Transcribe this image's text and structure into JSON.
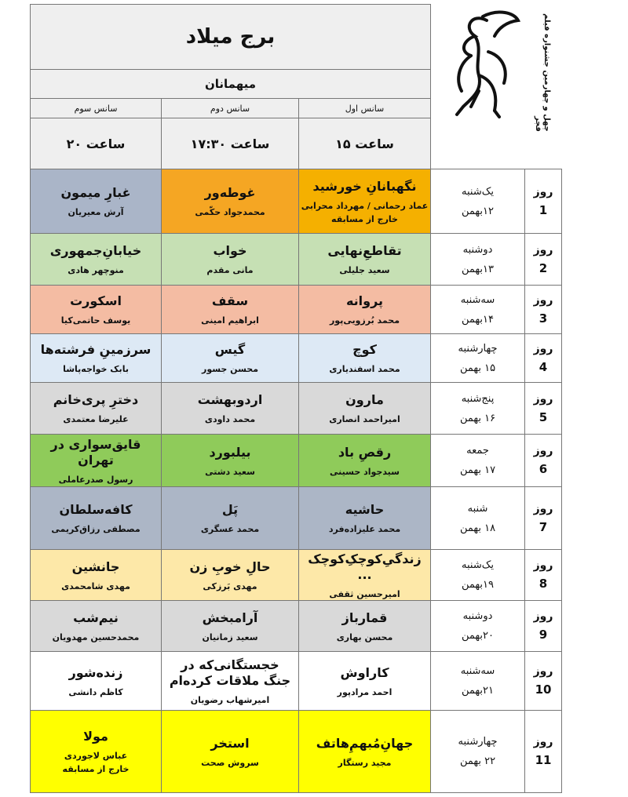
{
  "header": {
    "title": "برج میلاد",
    "guests": "میهمانان",
    "festival": "چهل و چهارمین جشنواره فیلم فجر",
    "sessions": [
      {
        "label": "سانس اول",
        "time": "ساعت ۱۵"
      },
      {
        "label": "سانس دوم",
        "time": "ساعت ۱۷:۳۰"
      },
      {
        "label": "سانس سوم",
        "time": "ساعت ۲۰"
      }
    ]
  },
  "schedule": {
    "day_label": "روز",
    "rows": [
      {
        "day": 1,
        "weekday": "یک‌شنبه",
        "date": "۱۲بهمن",
        "films": [
          {
            "title": "نگهبانانِ خورشید",
            "director": "عماد رحمانی / مهرداد محرابی",
            "note": "خارج از مسابقه",
            "color": "#f5b000"
          },
          {
            "title": "غوطه‌ور",
            "director": "محمدجواد حکّمی",
            "color": "#f5a623"
          },
          {
            "title": "غبارِ میمون",
            "director": "آرش معیریان",
            "color": "#aab5c8"
          }
        ]
      },
      {
        "day": 2,
        "weekday": "دوشنبه",
        "date": "۱۳بهمن",
        "films": [
          {
            "title": "تقاطعِ‌نهایی",
            "director": "سعید جلیلی",
            "color": "#c6e0b4"
          },
          {
            "title": "خواب",
            "director": "مانی مقدم",
            "color": "#c6e0b4"
          },
          {
            "title": "خیابانِ‌جمهوری",
            "director": "منوچهر هادی",
            "color": "#c6e0b4"
          }
        ]
      },
      {
        "day": 3,
        "weekday": "سه‌شنبه",
        "date": "۱۴بهمن",
        "films": [
          {
            "title": "پروانه",
            "director": "محمد بُرزویی‌پور",
            "color": "#f4bca3"
          },
          {
            "title": "سقف",
            "director": "ابراهیم امینی",
            "color": "#f4bca3"
          },
          {
            "title": "اسکورت",
            "director": "یوسف حاتمی‌کیا",
            "color": "#f4bca3"
          }
        ]
      },
      {
        "day": 4,
        "weekday": "چهارشنبه",
        "date": "۱۵ بهمن",
        "films": [
          {
            "title": "کوچ",
            "director": "محمد اسفندیاری",
            "color": "#dde9f5"
          },
          {
            "title": "گیس",
            "director": "محسن جسور",
            "color": "#dde9f5"
          },
          {
            "title": "سرزمینِ فرشته‌ها",
            "director": "بابک خواجه‌پاشا",
            "color": "#dde9f5"
          }
        ]
      },
      {
        "day": 5,
        "weekday": "پنج‌شنبه",
        "date": "۱۶ بهمن",
        "films": [
          {
            "title": "مارون",
            "director": "امیراحمد انصاری",
            "color": "#d9d9d9"
          },
          {
            "title": "اردوبهشت",
            "director": "محمد داودی",
            "color": "#d9d9d9"
          },
          {
            "title": "دخترِ پری‌خانم",
            "director": "علیرضا معتمدی",
            "color": "#d9d9d9"
          }
        ]
      },
      {
        "day": 6,
        "weekday": "جمعه",
        "date": "۱۷ بهمن",
        "films": [
          {
            "title": "رقصِ باد",
            "director": "سیدجواد حسینی",
            "color": "#8fcb5a"
          },
          {
            "title": "بیلبورد",
            "director": "سعید دشتی",
            "color": "#8fcb5a"
          },
          {
            "title": "قایق‌سواری در تهران",
            "director": "رسول صدرعاملی",
            "color": "#8fcb5a"
          }
        ]
      },
      {
        "day": 7,
        "weekday": "شنبه",
        "date": "۱۸ بهمن",
        "films": [
          {
            "title": "حاشیه",
            "director": "محمد علیزاده‌فرد",
            "color": "#acb6c6"
          },
          {
            "title": "پَل",
            "director": "محمد عسگری",
            "color": "#acb6c6"
          },
          {
            "title": "کافه‌سلطان",
            "director": "مصطفی رزاق‌کریمی",
            "color": "#acb6c6"
          }
        ]
      },
      {
        "day": 8,
        "weekday": "یک‌شنبه",
        "date": "۱۹بهمن",
        "films": [
          {
            "title": "زندگیِ‌کوچکِ‌کوچک ...",
            "director": "امیرحسین ثقفی",
            "color": "#fde8a8"
          },
          {
            "title": "حالِ خوبِ زن",
            "director": "مهدی بَرزکی",
            "color": "#fde8a8"
          },
          {
            "title": "جانشین",
            "director": "مهدی شامحمدی",
            "color": "#fde8a8"
          }
        ]
      },
      {
        "day": 9,
        "weekday": "دوشنبه",
        "date": "۲۰بهمن",
        "films": [
          {
            "title": "قمارباز",
            "director": "محسن بهاری",
            "color": "#d9d9d9"
          },
          {
            "title": "آرامبخش",
            "director": "سعید زمانیان",
            "color": "#d9d9d9"
          },
          {
            "title": "نیم‌شب",
            "director": "محمدحسین مهدویان",
            "color": "#d9d9d9"
          }
        ]
      },
      {
        "day": 10,
        "weekday": "سه‌شنبه",
        "date": "۲۱بهمن",
        "films": [
          {
            "title": "کاراوش",
            "director": "احمد مرادپور",
            "color": "#ffffff"
          },
          {
            "title": "خجستگانی‌که در جنگ ملاقات کرده‌ام",
            "director": "امیرشهاب رضویان",
            "color": "#ffffff"
          },
          {
            "title": "زنده‌شور",
            "director": "کاظم دانشی",
            "color": "#ffffff"
          }
        ]
      },
      {
        "day": 11,
        "weekday": "چهارشنبه",
        "date": "۲۲ بهمن",
        "films": [
          {
            "title": "جهانِ‌مُبهمِ‌هاتف",
            "director": "مجید رستگار",
            "color": "#ffff00"
          },
          {
            "title": "استخر",
            "director": "سروش صحت",
            "color": "#ffff00"
          },
          {
            "title": "مولا",
            "director": "عباس لاجوردی",
            "note": "خارج از مسابقه",
            "color": "#ffff00"
          }
        ]
      }
    ]
  }
}
